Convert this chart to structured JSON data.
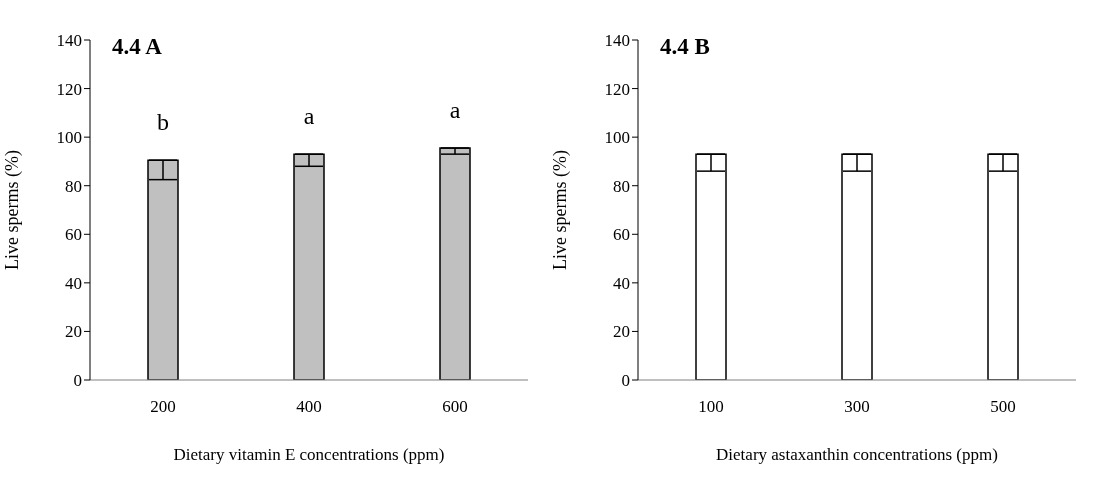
{
  "chart_data": [
    {
      "type": "bar",
      "title": "4.4 A",
      "xlabel": "Dietary vitamin E concentrations (ppm)",
      "ylabel": "Live sperms (%)",
      "categories": [
        "200",
        "400",
        "600"
      ],
      "series": [
        {
          "color": "#c0c0c0",
          "values": [
            90.5,
            93,
            95.5
          ],
          "errors": [
            [
              82.5,
              90.5
            ],
            [
              88,
              93
            ],
            [
              93,
              95.5
            ]
          ]
        }
      ],
      "ylim": [
        0,
        140
      ],
      "yticks": [
        0,
        20,
        40,
        60,
        80,
        100,
        120,
        140
      ],
      "grid": false,
      "legend": false,
      "annotations": [
        "b",
        "a",
        "a"
      ]
    },
    {
      "type": "bar",
      "title": "4.4 B",
      "xlabel": "Dietary astaxanthin concentrations (ppm)",
      "ylabel": "Live sperms (%)",
      "categories": [
        "100",
        "300",
        "500"
      ],
      "series": [
        {
          "color": "#ffffff",
          "values": [
            93,
            93,
            93
          ],
          "errors": [
            [
              86,
              93
            ],
            [
              86,
              93
            ],
            [
              86,
              93
            ]
          ]
        }
      ],
      "ylim": [
        0,
        140
      ],
      "yticks": [
        0,
        20,
        40,
        60,
        80,
        100,
        120,
        140
      ],
      "grid": false,
      "legend": false
    }
  ]
}
